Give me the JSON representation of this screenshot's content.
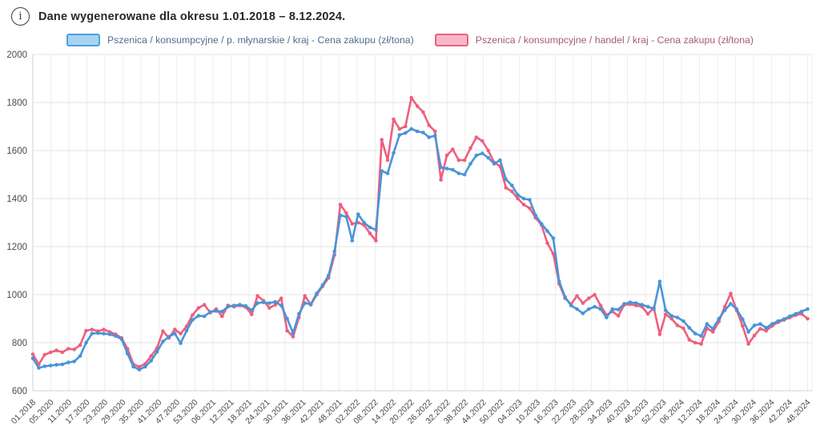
{
  "header": {
    "info_icon": "i",
    "title": "Dane wygenerowane dla okresu 1.01.2018 – 8.12.2024."
  },
  "legend": [
    {
      "label": "Pszenica / konsumpcyjne / p. młynarskie / kraj - Cena zakupu (zł/tona)",
      "swatch_fill": "#a9d3f3",
      "swatch_border": "#4da0e0",
      "text_color": "#4f6e8d"
    },
    {
      "label": "Pszenica / konsumpcyjne / handel / kraj - Cena zakupu (zł/tona)",
      "swatch_fill": "#f8b9c6",
      "swatch_border": "#ee5f7e",
      "text_color": "#a65c72"
    }
  ],
  "chart_data": {
    "type": "line",
    "x_labels": [
      "01.2018",
      "05.2020",
      "11.2020",
      "17.2020",
      "23.2020",
      "29.2020",
      "35.2020",
      "41.2020",
      "47.2020",
      "53.2020",
      "06.2021",
      "12.2021",
      "18.2021",
      "24.2021",
      "30.2021",
      "36.2021",
      "42.2021",
      "48.2021",
      "02.2022",
      "08.2022",
      "14.2022",
      "20.2022",
      "26.2022",
      "32.2022",
      "38.2022",
      "44.2022",
      "50.2022",
      "04.2023",
      "10.2023",
      "16.2023",
      "22.2023",
      "28.2023",
      "34.2023",
      "40.2023",
      "46.2023",
      "52.2023",
      "06.2024",
      "12.2024",
      "18.2024",
      "24.2024",
      "30.2024",
      "36.2024",
      "42.2024",
      "48.2024"
    ],
    "y_ticks": [
      600,
      800,
      1000,
      1200,
      1400,
      1600,
      1800,
      2000
    ],
    "y_min": 600,
    "y_max": 2000,
    "grid": true,
    "legend_position": "top",
    "x_label_rotation": -45,
    "series": [
      {
        "name": "Pszenica / konsumpcyjne / handel / kraj - Cena zakupu (zł/tona)",
        "color": "#ee5f7e",
        "values": [
          752,
          710,
          750,
          760,
          768,
          760,
          775,
          772,
          790,
          850,
          855,
          848,
          855,
          845,
          835,
          820,
          775,
          710,
          700,
          712,
          745,
          778,
          848,
          820,
          855,
          838,
          868,
          915,
          945,
          958,
          925,
          940,
          910,
          955,
          950,
          955,
          948,
          918,
          995,
          975,
          945,
          958,
          985,
          850,
          825,
          905,
          995,
          958,
          1000,
          1035,
          1070,
          1165,
          1375,
          1340,
          1295,
          1300,
          1290,
          1255,
          1225,
          1645,
          1560,
          1730,
          1690,
          1700,
          1820,
          1785,
          1760,
          1705,
          1680,
          1478,
          1580,
          1605,
          1560,
          1560,
          1610,
          1655,
          1640,
          1600,
          1550,
          1535,
          1445,
          1430,
          1400,
          1375,
          1360,
          1320,
          1290,
          1215,
          1170,
          1045,
          985,
          960,
          995,
          965,
          985,
          1000,
          955,
          915,
          930,
          912,
          958,
          960,
          955,
          950,
          920,
          945,
          835,
          918,
          900,
          872,
          860,
          812,
          800,
          795,
          860,
          845,
          888,
          950,
          1005,
          935,
          870,
          795,
          830,
          858,
          850,
          870,
          885,
          895,
          905,
          915,
          920,
          900
        ]
      },
      {
        "name": "Pszenica / konsumpcyjne / p. młynarskie / kraj - Cena zakupu (zł/tona)",
        "color": "#4894d8",
        "values": [
          735,
          695,
          702,
          705,
          708,
          710,
          718,
          722,
          745,
          800,
          838,
          840,
          838,
          835,
          828,
          815,
          755,
          700,
          688,
          700,
          725,
          762,
          805,
          825,
          838,
          798,
          850,
          895,
          912,
          910,
          928,
          932,
          930,
          950,
          955,
          958,
          953,
          935,
          965,
          968,
          965,
          970,
          955,
          900,
          840,
          920,
          965,
          960,
          1005,
          1040,
          1080,
          1180,
          1330,
          1325,
          1225,
          1335,
          1300,
          1280,
          1270,
          1515,
          1505,
          1590,
          1665,
          1673,
          1690,
          1680,
          1675,
          1655,
          1662,
          1530,
          1525,
          1520,
          1505,
          1500,
          1545,
          1580,
          1588,
          1570,
          1545,
          1560,
          1480,
          1455,
          1415,
          1400,
          1395,
          1330,
          1295,
          1265,
          1235,
          1055,
          990,
          955,
          940,
          922,
          940,
          950,
          940,
          905,
          940,
          938,
          962,
          968,
          965,
          958,
          950,
          940,
          1055,
          935,
          912,
          905,
          890,
          862,
          838,
          828,
          878,
          858,
          900,
          935,
          962,
          940,
          898,
          845,
          872,
          878,
          862,
          878,
          890,
          898,
          910,
          920,
          930,
          940
        ]
      }
    ]
  }
}
